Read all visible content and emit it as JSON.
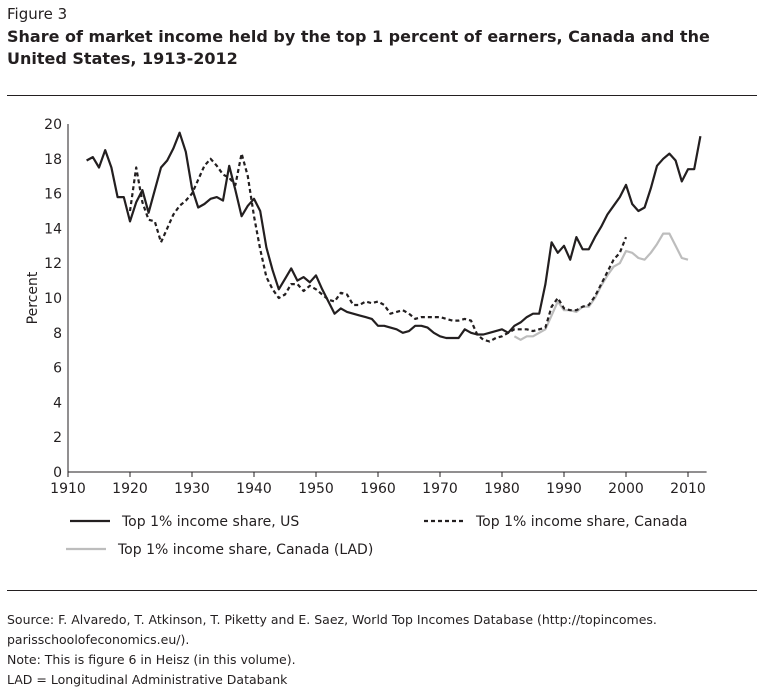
{
  "figure_label": "Figure 3",
  "title": "Share of market income held by the top 1 percent of earners, Canada and the United States, 1913-2012",
  "notes": {
    "source": "Source: F. Alvaredo, T. Atkinson, T. Piketty and E. Saez, World Top Incomes Database (http://topincomes. parisschoolofeconomics.eu/).",
    "note": "Note: This is figure 6 in Heisz (in this volume).",
    "lad": "LAD = Longitudinal Administrative Databank"
  },
  "chart_data": {
    "type": "line",
    "title": "",
    "xlabel": "",
    "ylabel": "Percent",
    "xlim": [
      1910,
      2013
    ],
    "ylim": [
      0,
      20
    ],
    "xticks": [
      1910,
      1920,
      1930,
      1940,
      1950,
      1960,
      1970,
      1980,
      1990,
      2000,
      2010
    ],
    "yticks": [
      0,
      2,
      4,
      6,
      8,
      10,
      12,
      14,
      16,
      18,
      20
    ],
    "grid": false,
    "legend": "bottom",
    "series": [
      {
        "name": "Top 1% income share, US",
        "style": "solid",
        "color": "#231f20",
        "start": 1913,
        "values": [
          17.9,
          18.1,
          17.5,
          18.5,
          17.5,
          15.8,
          15.8,
          14.4,
          15.5,
          16.2,
          14.9,
          16.2,
          17.5,
          17.9,
          18.6,
          19.5,
          18.4,
          16.3,
          15.2,
          15.4,
          15.7,
          15.8,
          15.6,
          17.6,
          16.2,
          14.7,
          15.3,
          15.7,
          15.0,
          12.9,
          11.6,
          10.5,
          11.1,
          11.7,
          11.0,
          11.2,
          10.9,
          11.3,
          10.5,
          9.8,
          9.1,
          9.4,
          9.2,
          9.1,
          9.0,
          8.9,
          8.8,
          8.4,
          8.4,
          8.3,
          8.2,
          8.0,
          8.1,
          8.4,
          8.4,
          8.3,
          8.0,
          7.8,
          7.7,
          7.7,
          7.7,
          8.2,
          8.0,
          7.9,
          7.9,
          8.0,
          8.1,
          8.2,
          8.0,
          8.4,
          8.6,
          8.9,
          9.1,
          9.1,
          10.8,
          13.2,
          12.6,
          13.0,
          12.2,
          13.5,
          12.8,
          12.8,
          13.5,
          14.1,
          14.8,
          15.3,
          15.8,
          16.5,
          15.4,
          15.0,
          15.2,
          16.3,
          17.6,
          18.0,
          18.3,
          17.9,
          16.7,
          17.4,
          17.4,
          19.3
        ]
      },
      {
        "name": "Top 1% income share, Canada",
        "style": "dashed",
        "color": "#231f20",
        "start": 1920,
        "values": [
          15.0,
          17.5,
          15.5,
          14.5,
          14.4,
          13.2,
          14.0,
          14.8,
          15.3,
          15.6,
          16.0,
          16.8,
          17.6,
          18.0,
          17.6,
          17.1,
          16.9,
          16.5,
          18.3,
          17.0,
          14.7,
          12.8,
          11.2,
          10.5,
          10.0,
          10.2,
          10.8,
          10.8,
          10.4,
          10.7,
          10.5,
          10.2,
          9.9,
          9.8,
          10.3,
          10.2,
          9.6,
          9.6,
          9.8,
          9.7,
          9.8,
          9.6,
          9.1,
          9.2,
          9.3,
          9.1,
          8.8,
          8.9,
          8.9,
          8.9,
          8.9,
          8.8,
          8.7,
          8.7,
          8.8,
          8.7,
          7.9,
          7.6,
          7.5,
          7.7,
          7.8,
          8.0,
          8.2,
          8.2,
          8.2,
          8.1,
          8.2,
          8.3,
          9.5,
          10.0,
          9.4,
          9.3,
          9.3,
          9.5,
          9.6,
          10.1,
          10.8,
          11.5,
          12.2,
          12.6,
          13.5
        ]
      },
      {
        "name": "Top 1% income share, Canada (LAD)",
        "style": "solid",
        "color": "#bdbdbd",
        "start": 1982,
        "values": [
          7.8,
          7.6,
          7.8,
          7.8,
          8.0,
          8.2,
          9.0,
          9.8,
          9.3,
          9.3,
          9.2,
          9.5,
          9.5,
          10.0,
          10.7,
          11.3,
          11.8,
          12.0,
          12.7,
          12.6,
          12.3,
          12.2,
          12.6,
          13.1,
          13.7,
          13.7,
          13.0,
          12.3,
          12.2
        ]
      }
    ]
  }
}
